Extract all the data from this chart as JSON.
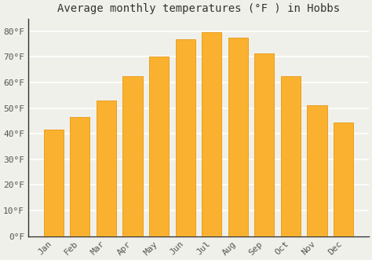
{
  "months": [
    "Jan",
    "Feb",
    "Mar",
    "Apr",
    "May",
    "Jun",
    "Jul",
    "Aug",
    "Sep",
    "Oct",
    "Nov",
    "Dec"
  ],
  "values": [
    41.5,
    46.5,
    53.0,
    62.5,
    70.0,
    77.0,
    79.5,
    77.5,
    71.5,
    62.5,
    51.0,
    44.5
  ],
  "bar_color": "#FBB130",
  "bar_edge_color": "#E8960A",
  "title": "Average monthly temperatures (°F ) in Hobbs",
  "ylim": [
    0,
    85
  ],
  "yticks": [
    0,
    10,
    20,
    30,
    40,
    50,
    60,
    70,
    80
  ],
  "ytick_labels": [
    "0°F",
    "10°F",
    "20°F",
    "30°F",
    "40°F",
    "50°F",
    "60°F",
    "70°F",
    "80°F"
  ],
  "background_color": "#f0f0ea",
  "grid_color": "#ffffff",
  "title_fontsize": 10,
  "tick_fontsize": 8,
  "bar_width": 0.75
}
